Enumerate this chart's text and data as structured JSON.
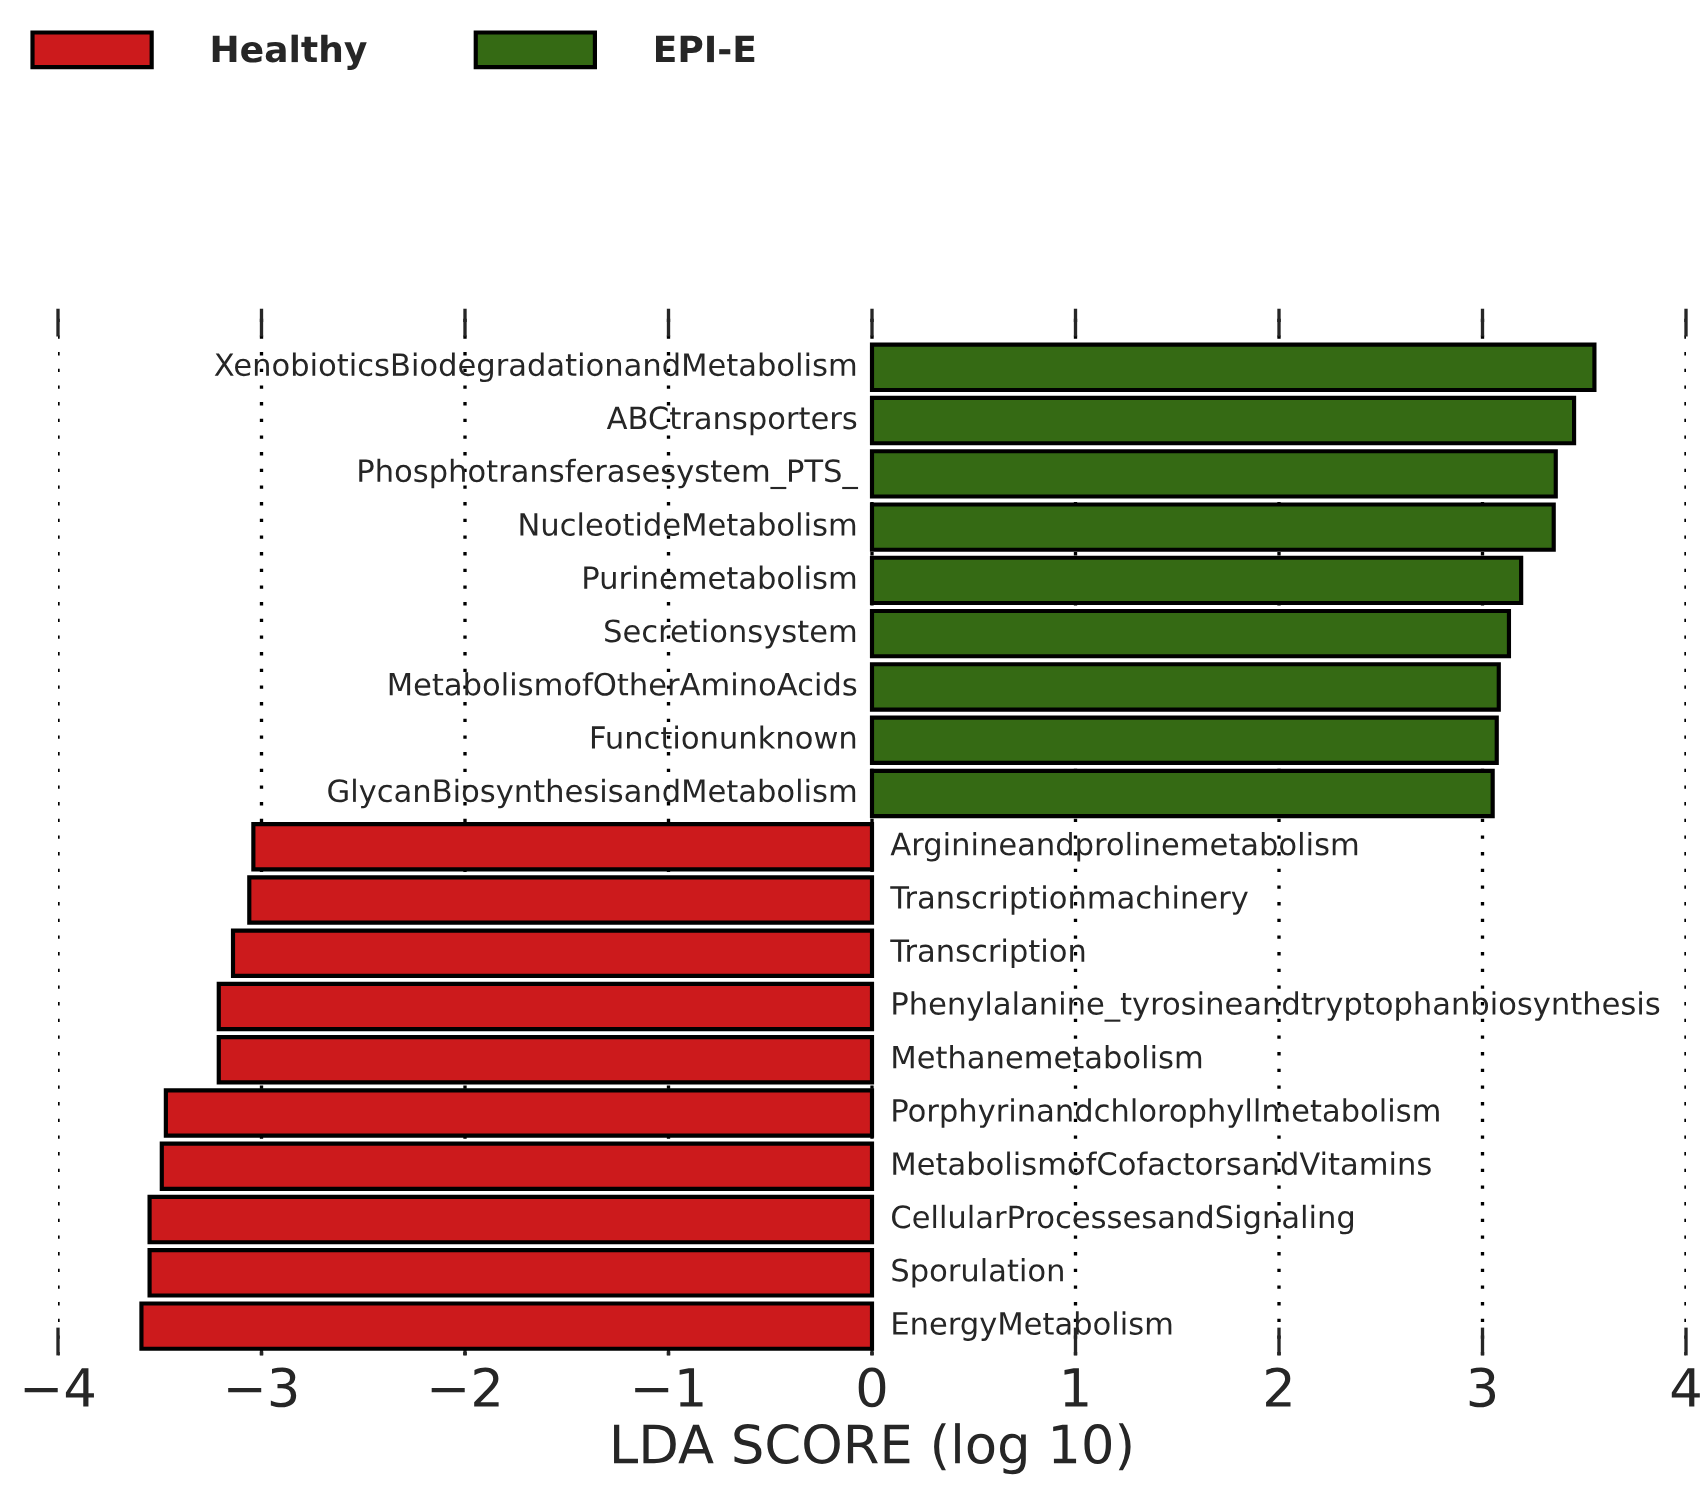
{
  "chart_data": {
    "type": "bar",
    "orientation": "horizontal",
    "xlabel": "LDA SCORE (log 10)",
    "categories": [
      "XenobioticsBiodegradationandMetabolism",
      "ABCtransporters",
      "Phosphotransferasesystem_PTS_",
      "NucleotideMetabolism",
      "Purinemetabolism",
      "Secretionsystem",
      "MetabolismofOtherAminoAcids",
      "Functionunknown",
      "GlycanBiosynthesisandMetabolism",
      "Arginineandprolinemetabolism",
      "Transcriptionmachinery",
      "Transcription",
      "Phenylalanine_tyrosineandtryptophanbiosynthesis",
      "Methanemetabolism",
      "Porphyrinandchlorophyllmetabolism",
      "MetabolismofCofactorsandVitamins",
      "CellularProcessesandSignaling",
      "Sporulation",
      "EnergyMetabolism"
    ],
    "series": [
      {
        "name": "Healthy",
        "color": "#cc1a1c",
        "values": [
          null,
          null,
          null,
          null,
          null,
          null,
          null,
          null,
          null,
          -3.04,
          -3.06,
          -3.14,
          -3.21,
          -3.21,
          -3.47,
          -3.49,
          -3.55,
          -3.55,
          -3.59
        ]
      },
      {
        "name": "EPI-E",
        "color": "#356a14",
        "values": [
          3.55,
          3.45,
          3.36,
          3.35,
          3.19,
          3.13,
          3.08,
          3.07,
          3.05,
          null,
          null,
          null,
          null,
          null,
          null,
          null,
          null,
          null,
          null
        ]
      }
    ],
    "xlim": [
      -4,
      4
    ],
    "xticks": [
      {
        "value": -4,
        "label": "−4"
      },
      {
        "value": -3,
        "label": "−3"
      },
      {
        "value": -2,
        "label": "−2"
      },
      {
        "value": -1,
        "label": "−1"
      },
      0,
      1,
      2,
      3,
      4
    ],
    "grid": "x",
    "legend": "top left"
  }
}
